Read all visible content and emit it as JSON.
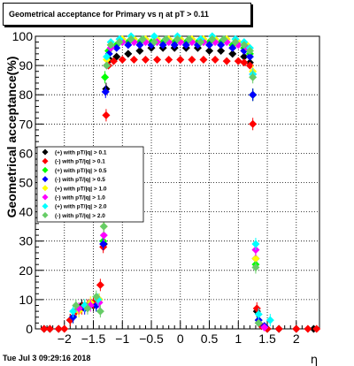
{
  "chart_data": {
    "type": "scatter",
    "title": "Geometrical acceptance for Primary vs   η at pT > 0.11",
    "xlabel": "η",
    "ylabel": "Geometrical acceptance(%)",
    "xlim": [
      -2.5,
      2.4
    ],
    "ylim": [
      0,
      100
    ],
    "x_ticks": [
      -2,
      -1.5,
      -1,
      -0.5,
      0,
      0.5,
      1,
      1.5,
      2
    ],
    "x_tick_labels": [
      "−2",
      "−1.5",
      "−1",
      "−0.5",
      "0",
      "0.5",
      "1",
      "1.5",
      "2"
    ],
    "y_ticks": [
      0,
      10,
      20,
      30,
      40,
      50,
      60,
      70,
      80,
      90,
      100
    ],
    "y_tick_labels": [
      "0",
      "10",
      "20",
      "30",
      "40",
      "50",
      "60",
      "70",
      "80",
      "90",
      "100"
    ],
    "grid": true,
    "legend_position": "middle-left",
    "datestamp": "Tue Jul  3 09:29:16 2018",
    "series": [
      {
        "name": "(+) with pT/|q| > 0.1",
        "color": "#000000",
        "points": [
          [
            -2.35,
            0
          ],
          [
            -2.25,
            0
          ],
          [
            -2.1,
            0
          ],
          [
            -1.9,
            3
          ],
          [
            -1.8,
            6
          ],
          [
            -1.7,
            8
          ],
          [
            -1.6,
            8
          ],
          [
            -1.5,
            8
          ],
          [
            -1.4,
            10
          ],
          [
            -1.32,
            29
          ],
          [
            -1.28,
            82
          ],
          [
            -1.22,
            92
          ],
          [
            -1.1,
            93
          ],
          [
            -0.9,
            94
          ],
          [
            -0.7,
            95
          ],
          [
            -0.5,
            96
          ],
          [
            -0.3,
            96
          ],
          [
            -0.1,
            96
          ],
          [
            0.1,
            96
          ],
          [
            0.3,
            96
          ],
          [
            0.5,
            95
          ],
          [
            0.7,
            95
          ],
          [
            0.9,
            94
          ],
          [
            1.1,
            93
          ],
          [
            1.2,
            91
          ],
          [
            1.25,
            80
          ],
          [
            1.32,
            6
          ],
          [
            1.4,
            1
          ],
          [
            1.5,
            0
          ],
          [
            1.7,
            0
          ],
          [
            2.0,
            0
          ],
          [
            2.3,
            0
          ]
        ]
      },
      {
        "name": "(-) with pT/|q| > 0.1",
        "color": "#ff0000",
        "points": [
          [
            -2.35,
            0
          ],
          [
            -2.25,
            0
          ],
          [
            -2.1,
            0
          ],
          [
            -2.0,
            0
          ],
          [
            -1.9,
            3
          ],
          [
            -1.8,
            6
          ],
          [
            -1.7,
            7
          ],
          [
            -1.6,
            8
          ],
          [
            -1.5,
            9
          ],
          [
            -1.38,
            15
          ],
          [
            -1.33,
            28
          ],
          [
            -1.28,
            73
          ],
          [
            -1.24,
            90
          ],
          [
            -1.15,
            91.5
          ],
          [
            -1.0,
            92
          ],
          [
            -0.8,
            92
          ],
          [
            -0.6,
            92
          ],
          [
            -0.4,
            92
          ],
          [
            -0.2,
            92
          ],
          [
            0.0,
            92
          ],
          [
            0.2,
            92
          ],
          [
            0.4,
            92
          ],
          [
            0.6,
            92
          ],
          [
            0.8,
            91.5
          ],
          [
            1.0,
            91.5
          ],
          [
            1.1,
            91
          ],
          [
            1.2,
            90
          ],
          [
            1.25,
            70
          ],
          [
            1.32,
            7
          ],
          [
            1.4,
            1
          ],
          [
            1.5,
            0
          ],
          [
            1.7,
            0
          ],
          [
            2.0,
            0
          ],
          [
            2.2,
            0
          ],
          [
            2.35,
            0
          ]
        ]
      },
      {
        "name": "(+) with pT/|q| > 0.5",
        "color": "#00ff00",
        "points": [
          [
            -1.85,
            4
          ],
          [
            -1.65,
            8
          ],
          [
            -1.45,
            8
          ],
          [
            -1.33,
            30
          ],
          [
            -1.3,
            86
          ],
          [
            -1.24,
            95
          ],
          [
            -1.1,
            97
          ],
          [
            -0.9,
            98
          ],
          [
            -0.7,
            98
          ],
          [
            -0.5,
            98
          ],
          [
            -0.3,
            98
          ],
          [
            -0.1,
            98
          ],
          [
            0.1,
            98
          ],
          [
            0.3,
            98
          ],
          [
            0.5,
            98
          ],
          [
            0.7,
            98
          ],
          [
            0.9,
            97
          ],
          [
            1.1,
            96
          ],
          [
            1.2,
            94
          ],
          [
            1.25,
            80
          ],
          [
            1.3,
            22
          ],
          [
            1.35,
            3
          ],
          [
            1.45,
            1
          ]
        ]
      },
      {
        "name": "(-) with pT/|q| > 0.5",
        "color": "#0000ff",
        "points": [
          [
            -1.85,
            4
          ],
          [
            -1.65,
            7
          ],
          [
            -1.45,
            8
          ],
          [
            -1.33,
            29
          ],
          [
            -1.29,
            81
          ],
          [
            -1.23,
            94
          ],
          [
            -1.1,
            96
          ],
          [
            -0.9,
            97
          ],
          [
            -0.7,
            97
          ],
          [
            -0.5,
            97
          ],
          [
            -0.3,
            97
          ],
          [
            -0.1,
            97
          ],
          [
            0.1,
            97
          ],
          [
            0.3,
            97
          ],
          [
            0.5,
            97
          ],
          [
            0.7,
            97
          ],
          [
            0.9,
            96
          ],
          [
            1.1,
            95
          ],
          [
            1.2,
            93
          ],
          [
            1.25,
            80
          ],
          [
            1.3,
            24
          ],
          [
            1.35,
            3
          ],
          [
            1.45,
            1
          ]
        ]
      },
      {
        "name": "(+) with pT/|q| > 1.0",
        "color": "#ffff00",
        "points": [
          [
            -1.75,
            6
          ],
          [
            -1.55,
            9
          ],
          [
            -1.4,
            10
          ],
          [
            -1.32,
            35
          ],
          [
            -1.27,
            92
          ],
          [
            -1.2,
            97
          ],
          [
            -1.0,
            99
          ],
          [
            -0.8,
            99
          ],
          [
            -0.6,
            99
          ],
          [
            -0.4,
            99
          ],
          [
            -0.2,
            99
          ],
          [
            0.0,
            99
          ],
          [
            0.2,
            99
          ],
          [
            0.4,
            99
          ],
          [
            0.6,
            99
          ],
          [
            0.8,
            99
          ],
          [
            1.0,
            98
          ],
          [
            1.15,
            97
          ],
          [
            1.25,
            88
          ],
          [
            1.3,
            24
          ]
        ]
      },
      {
        "name": "(-) with pT/|q| > 1.0",
        "color": "#ff00ff",
        "points": [
          [
            -1.75,
            7
          ],
          [
            -1.55,
            8
          ],
          [
            -1.4,
            9
          ],
          [
            -1.32,
            32
          ],
          [
            -1.27,
            90
          ],
          [
            -1.2,
            96
          ],
          [
            -1.0,
            98
          ],
          [
            -0.8,
            98
          ],
          [
            -0.6,
            98
          ],
          [
            -0.4,
            98
          ],
          [
            -0.2,
            98
          ],
          [
            0.0,
            98
          ],
          [
            0.2,
            98
          ],
          [
            0.4,
            98
          ],
          [
            0.6,
            98
          ],
          [
            0.8,
            98
          ],
          [
            1.0,
            97
          ],
          [
            1.15,
            96
          ],
          [
            1.25,
            87
          ],
          [
            1.3,
            27
          ],
          [
            1.35,
            2
          ],
          [
            1.45,
            0.5
          ]
        ]
      },
      {
        "name": "(+) with pT/|q| > 2.0",
        "color": "#00ffff",
        "points": [
          [
            -1.85,
            6
          ],
          [
            -1.65,
            8
          ],
          [
            -1.42,
            10
          ],
          [
            -1.32,
            40
          ],
          [
            -1.27,
            93
          ],
          [
            -1.2,
            98
          ],
          [
            -1.05,
            99
          ],
          [
            -0.85,
            100
          ],
          [
            -0.65,
            99
          ],
          [
            -0.45,
            100
          ],
          [
            -0.25,
            99
          ],
          [
            -0.05,
            100
          ],
          [
            0.15,
            99
          ],
          [
            0.35,
            99
          ],
          [
            0.55,
            100
          ],
          [
            0.75,
            99
          ],
          [
            0.95,
            99
          ],
          [
            1.1,
            98
          ],
          [
            1.2,
            96
          ],
          [
            1.25,
            87
          ],
          [
            1.3,
            29
          ],
          [
            1.35,
            5
          ],
          [
            1.55,
            3
          ]
        ]
      },
      {
        "name": "(-) with pT/|q| > 2.0",
        "color": "#66cc66",
        "points": [
          [
            -1.8,
            8
          ],
          [
            -1.6,
            7
          ],
          [
            -1.45,
            11
          ],
          [
            -1.38,
            6
          ],
          [
            -1.32,
            35
          ],
          [
            -1.27,
            90
          ],
          [
            -1.2,
            97
          ],
          [
            -1.05,
            98
          ],
          [
            -0.85,
            99
          ],
          [
            -0.65,
            99
          ],
          [
            -0.45,
            98
          ],
          [
            -0.25,
            99
          ],
          [
            -0.05,
            99
          ],
          [
            0.15,
            99
          ],
          [
            0.35,
            98
          ],
          [
            0.55,
            99
          ],
          [
            0.75,
            99
          ],
          [
            0.95,
            98
          ],
          [
            1.1,
            97
          ],
          [
            1.2,
            95
          ],
          [
            1.25,
            86
          ],
          [
            1.3,
            21
          ],
          [
            1.35,
            2
          ]
        ]
      }
    ]
  }
}
